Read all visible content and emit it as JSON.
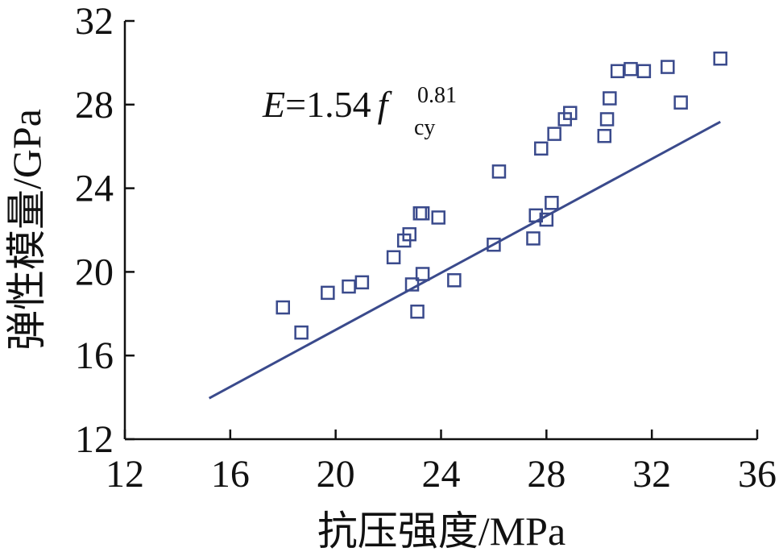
{
  "chart_data": {
    "type": "scatter",
    "title": "",
    "xlabel": "抗压强度/MPa",
    "ylabel": "弹性模量/GPa",
    "xlim": [
      12,
      36
    ],
    "ylim": [
      12,
      32
    ],
    "xticks": [
      12,
      16,
      20,
      24,
      28,
      32,
      36
    ],
    "yticks": [
      12,
      16,
      20,
      24,
      28,
      32
    ],
    "grid": false,
    "legend": "none",
    "marker": "open-square",
    "color": "#3a4a8c",
    "points": [
      {
        "x": 18.0,
        "y": 18.3
      },
      {
        "x": 18.7,
        "y": 17.1
      },
      {
        "x": 19.7,
        "y": 19.0
      },
      {
        "x": 20.5,
        "y": 19.3
      },
      {
        "x": 21.0,
        "y": 19.5
      },
      {
        "x": 22.2,
        "y": 20.7
      },
      {
        "x": 22.6,
        "y": 21.5
      },
      {
        "x": 22.8,
        "y": 21.8
      },
      {
        "x": 22.9,
        "y": 19.4
      },
      {
        "x": 23.1,
        "y": 18.1
      },
      {
        "x": 23.2,
        "y": 22.8
      },
      {
        "x": 23.3,
        "y": 19.9
      },
      {
        "x": 23.3,
        "y": 22.8
      },
      {
        "x": 23.9,
        "y": 22.6
      },
      {
        "x": 24.5,
        "y": 19.6
      },
      {
        "x": 26.0,
        "y": 21.3
      },
      {
        "x": 26.2,
        "y": 24.8
      },
      {
        "x": 27.5,
        "y": 21.6
      },
      {
        "x": 27.6,
        "y": 22.7
      },
      {
        "x": 27.8,
        "y": 25.9
      },
      {
        "x": 28.0,
        "y": 22.5
      },
      {
        "x": 28.2,
        "y": 23.3
      },
      {
        "x": 28.3,
        "y": 26.6
      },
      {
        "x": 28.7,
        "y": 27.3
      },
      {
        "x": 28.9,
        "y": 27.6
      },
      {
        "x": 30.2,
        "y": 26.5
      },
      {
        "x": 30.3,
        "y": 27.3
      },
      {
        "x": 30.4,
        "y": 28.3
      },
      {
        "x": 30.7,
        "y": 29.6
      },
      {
        "x": 31.2,
        "y": 29.7
      },
      {
        "x": 31.7,
        "y": 29.6
      },
      {
        "x": 32.6,
        "y": 29.8
      },
      {
        "x": 33.1,
        "y": 28.1
      },
      {
        "x": 34.6,
        "y": 30.2
      }
    ],
    "fit": {
      "coefficient": 1.54,
      "exponent": 0.81,
      "x_range": [
        15.2,
        34.6
      ],
      "equation": {
        "lhs": "E",
        "eq": "=",
        "coef": "1.54",
        "var": "f",
        "sub": "cy",
        "sup": "0.81"
      }
    }
  }
}
